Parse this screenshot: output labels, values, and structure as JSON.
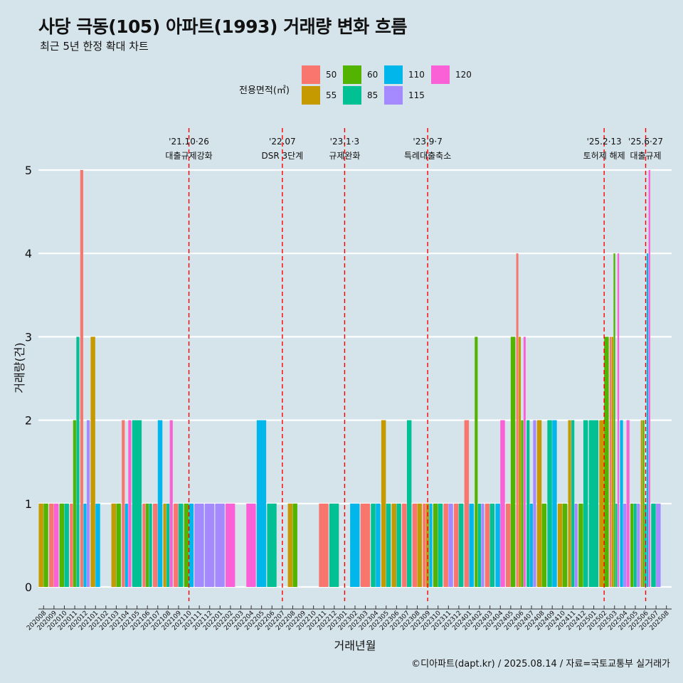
{
  "title": "사당 극동(105) 아파트(1993) 거래량 변화 흐름",
  "subtitle": "최근 5년 한정 확대 차트",
  "caption": "©디아파트(dapt.kr) / 2025.08.14 / 자료=국토교통부 실거래가",
  "legend": {
    "title": "전용면적(㎡)",
    "items": [
      {
        "label": "50",
        "color": "#f8766d"
      },
      {
        "label": "55",
        "color": "#c49a00"
      },
      {
        "label": "60",
        "color": "#53b400"
      },
      {
        "label": "85",
        "color": "#00c094"
      },
      {
        "label": "110",
        "color": "#00b6eb"
      },
      {
        "label": "115",
        "color": "#a58aff"
      },
      {
        "label": "120",
        "color": "#fb61d7"
      }
    ]
  },
  "chart_data": {
    "type": "bar",
    "xlabel": "거래년월",
    "ylabel": "거래량(건)",
    "ylim": [
      0,
      5
    ],
    "yticks": [
      0,
      1,
      2,
      3,
      4,
      5
    ],
    "categories": [
      "202008",
      "202009",
      "202010",
      "202011",
      "202012",
      "202101",
      "202102",
      "202103",
      "202104",
      "202105",
      "202106",
      "202107",
      "202108",
      "202109",
      "202110",
      "202111",
      "202112",
      "202201",
      "202202",
      "202203",
      "202204",
      "202205",
      "202206",
      "202207",
      "202208",
      "202209",
      "202210",
      "202211",
      "202212",
      "202301",
      "202302",
      "202303",
      "202304",
      "202305",
      "202306",
      "202307",
      "202308",
      "202309",
      "202310",
      "202311",
      "202312",
      "202401",
      "202402",
      "202403",
      "202404",
      "202405",
      "202406",
      "202407",
      "202408",
      "202409",
      "202410",
      "202411",
      "202412",
      "202501",
      "202502",
      "202503",
      "202504",
      "202505",
      "202506",
      "202507",
      "202508"
    ],
    "series": [
      {
        "name": "50",
        "color": "#f8766d",
        "values": {
          "202009": 1,
          "202011": 1,
          "202012": 5,
          "202104": 2,
          "202106": 1,
          "202107": 1,
          "202109": 1,
          "202211": 1,
          "202303": 1,
          "202307": 1,
          "202308": 1,
          "202309": 1,
          "202311": 1,
          "202312": 1,
          "202401": 2,
          "202403": 1,
          "202405": 1,
          "202406": 4,
          "202503": 3
        }
      },
      {
        "name": "55",
        "color": "#c49a00",
        "values": {
          "202008": 1,
          "202101": 3,
          "202103": 1,
          "202108": 1,
          "202208": 1,
          "202305": 2,
          "202306": 1,
          "202308": 1,
          "202309": 1,
          "202406": 3,
          "202408": 2,
          "202410": 1,
          "202411": 2,
          "202502": 2,
          "202503": 3,
          "202506": 2
        }
      },
      {
        "name": "60",
        "color": "#53b400",
        "values": {
          "202008": 1,
          "202010": 1,
          "202011": 2,
          "202103": 1,
          "202106": 1,
          "202110": 1,
          "202208": 1,
          "202310": 1,
          "202402": 3,
          "202405": 3,
          "202406": 2,
          "202408": 1,
          "202410": 1,
          "202412": 1,
          "202502": 3,
          "202503": 4,
          "202505": 1,
          "202506": 2
        }
      },
      {
        "name": "85",
        "color": "#00c094",
        "values": {
          "202010": 1,
          "202011": 3,
          "202105": 2,
          "202106": 1,
          "202108": 1,
          "202109": 1,
          "202206": 1,
          "202212": 1,
          "202304": 1,
          "202305": 1,
          "202306": 1,
          "202307": 2,
          "202310": 1,
          "202312": 1,
          "202402": 1,
          "202403": 1,
          "202407": 2,
          "202409": 2,
          "202411": 2,
          "202412": 2,
          "202501": 2,
          "202503": 1,
          "202505": 1,
          "202506": 1,
          "202507": 1
        }
      },
      {
        "name": "110",
        "color": "#00b6eb",
        "values": {
          "202012": 1,
          "202101": 1,
          "202104": 1,
          "202107": 2,
          "202110": 1,
          "202205": 2,
          "202302": 1,
          "202304": 1,
          "202309": 1,
          "202401": 1,
          "202404": 1,
          "202407": 1,
          "202409": 2,
          "202504": 2,
          "202506": 4
        }
      },
      {
        "name": "115",
        "color": "#a58aff",
        "values": {
          "202012": 2,
          "202111": 1,
          "202112": 1,
          "202201": 1,
          "202311": 1,
          "202402": 1,
          "202407": 2,
          "202411": 1,
          "202504": 1,
          "202505": 1,
          "202507": 1
        }
      },
      {
        "name": "120",
        "color": "#fb61d7",
        "values": {
          "202009": 1,
          "202104": 2,
          "202108": 2,
          "202202": 1,
          "202204": 1,
          "202404": 2,
          "202406": 3,
          "202503": 4,
          "202504": 2,
          "202506": 5
        }
      }
    ],
    "annotations": [
      {
        "date": "202110",
        "line1": "'21.10·26",
        "line2": "대출규제강화"
      },
      {
        "date": "202207",
        "line1": "'22.07",
        "line2": "DSR 3단계"
      },
      {
        "date": "202301",
        "line1": "'23.1·3",
        "line2": "규제완화"
      },
      {
        "date": "202309",
        "line1": "'23.9·7",
        "line2": "특례대출축소"
      },
      {
        "date": "202502",
        "line1": "'25.2·13",
        "line2": "토허제 해제"
      },
      {
        "date": "202506",
        "line1": "'25.6·27",
        "line2": "대출규제"
      }
    ],
    "grid": true,
    "legend_position": "top"
  }
}
